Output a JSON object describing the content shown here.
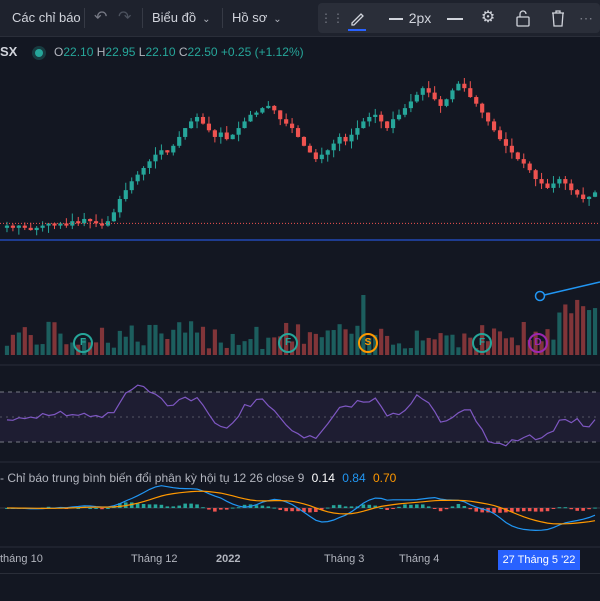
{
  "toolbar": {
    "indicators_label": "Các chỉ báo",
    "chart_label": "Biểu đồ",
    "profile_label": "Hồ sơ",
    "line_width_label": "2px",
    "icons": [
      "undo-icon",
      "redo-icon",
      "drag-handle-icon",
      "pencil-icon",
      "line-style-icon",
      "settings-icon",
      "lock-icon",
      "trash-icon"
    ]
  },
  "legend": {
    "symbol": "SX",
    "o_label": "O",
    "o_value": "22.10",
    "h_label": "H",
    "h_value": "22.95",
    "l_label": "L",
    "l_value": "22.10",
    "c_label": "C",
    "c_value": "22.50",
    "change": "+0.25 (+1.12%)"
  },
  "events": [
    {
      "letter": "F",
      "color": "#26a69a"
    },
    {
      "letter": "F",
      "color": "#26a69a"
    },
    {
      "letter": "S",
      "color": "#ff9800"
    },
    {
      "letter": "F",
      "color": "#26a69a"
    },
    {
      "letter": "D",
      "color": "#9c27b0"
    }
  ],
  "macd": {
    "name": "Chỉ báo trung bình biến đổi phân kỳ hội tụ",
    "params": "12 26 close 9",
    "val1": "0.14",
    "val2": "0.84",
    "val3": "0.70",
    "colors": {
      "val1": "#ffffff",
      "val2": "#2196f3",
      "val3": "#ff9800"
    }
  },
  "time_axis": {
    "labels": [
      "tháng 10",
      "Tháng 12",
      "2022",
      "Tháng 3",
      "Tháng 4"
    ],
    "highlight": "27 Tháng 5 '22"
  },
  "colors": {
    "up": "#26a69a",
    "down": "#ef5350",
    "background": "#131722",
    "rsi_line": "#7e57c2",
    "price_line": "#2962ff"
  },
  "chart_data": {
    "type": "candlestick",
    "close_series": [
      20.6,
      20.5,
      20.6,
      20.5,
      20.4,
      20.5,
      20.6,
      20.7,
      20.6,
      20.7,
      20.6,
      20.8,
      20.7,
      20.9,
      20.8,
      20.7,
      20.6,
      20.8,
      21.2,
      21.8,
      22.2,
      22.6,
      22.9,
      23.2,
      23.5,
      23.8,
      24.0,
      23.9,
      24.2,
      24.6,
      25.0,
      25.3,
      25.5,
      25.2,
      24.9,
      24.6,
      24.8,
      24.5,
      24.7,
      25.0,
      25.3,
      25.6,
      25.7,
      25.9,
      26.0,
      25.8,
      25.4,
      25.2,
      25.0,
      24.6,
      24.2,
      23.9,
      23.6,
      23.8,
      24.0,
      24.3,
      24.6,
      24.4,
      24.7,
      25.0,
      25.3,
      25.5,
      25.6,
      25.3,
      25.0,
      25.4,
      25.6,
      25.9,
      26.2,
      26.5,
      26.8,
      26.6,
      26.3,
      26.0,
      26.3,
      26.7,
      27.0,
      26.8,
      26.4,
      26.1,
      25.7,
      25.3,
      24.9,
      24.5,
      24.2,
      23.9,
      23.6,
      23.4,
      23.1,
      22.7,
      22.5,
      22.3,
      22.5,
      22.7,
      22.5,
      22.2,
      22.0,
      21.8,
      21.9,
      22.1
    ],
    "pivot_line_value": 20.7
  }
}
